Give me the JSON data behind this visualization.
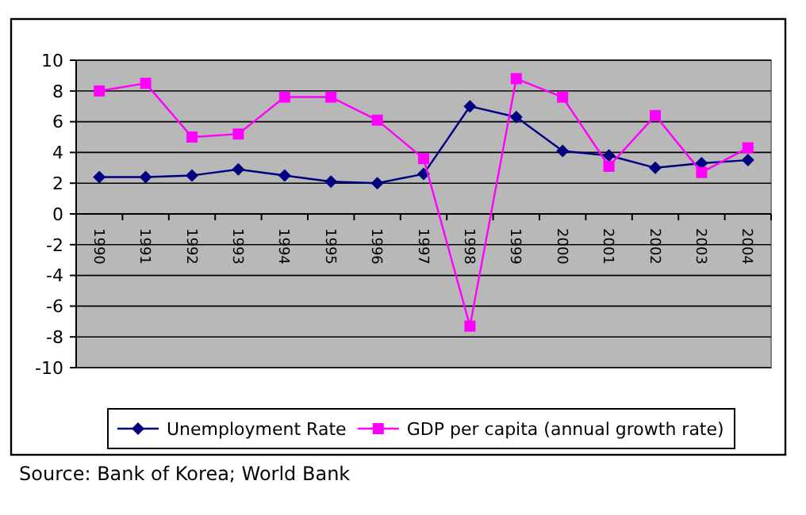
{
  "chart_data": {
    "type": "line",
    "categories": [
      "1990",
      "1991",
      "1992",
      "1993",
      "1994",
      "1995",
      "1996",
      "1997",
      "1998",
      "1999",
      "2000",
      "2001",
      "2002",
      "2003",
      "2004"
    ],
    "series": [
      {
        "name": "Unemployment Rate",
        "color": "#000080",
        "marker": "diamond",
        "values": [
          2.4,
          2.4,
          2.5,
          2.9,
          2.5,
          2.1,
          2.0,
          2.6,
          7.0,
          6.3,
          4.1,
          3.8,
          3.0,
          3.3,
          3.5
        ]
      },
      {
        "name": "GDP per capita (annual growth rate)",
        "color": "#ff00ff",
        "marker": "square",
        "values": [
          8.0,
          8.5,
          5.0,
          5.2,
          7.6,
          7.6,
          6.1,
          3.6,
          -7.3,
          8.8,
          7.6,
          3.1,
          6.4,
          2.7,
          4.3
        ]
      }
    ],
    "ylim": [
      -10,
      10
    ],
    "yticks": [
      -10,
      -8,
      -6,
      -4,
      -2,
      0,
      2,
      4,
      6,
      8,
      10
    ],
    "grid": "y",
    "legend": "bottom",
    "annotations": [
      "Source: Bank of Korea; World Bank"
    ]
  }
}
